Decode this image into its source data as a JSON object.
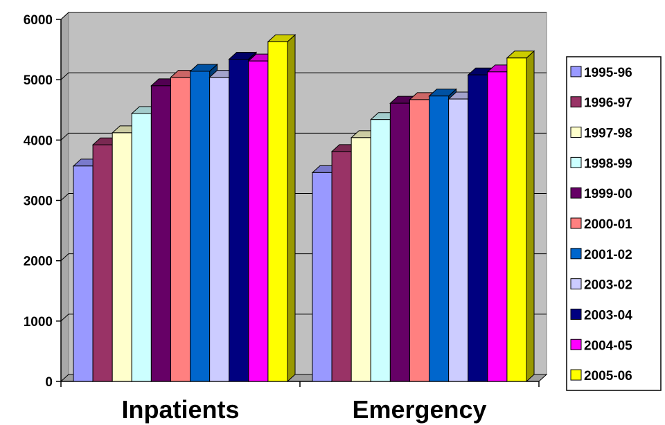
{
  "chart_data": {
    "type": "bar",
    "three_d": true,
    "categories": [
      "Inpatients",
      "Emergency"
    ],
    "series": [
      {
        "name": "1995-96",
        "color": "#9999ff",
        "values": [
          3570,
          3460
        ]
      },
      {
        "name": "1996-97",
        "color": "#993366",
        "values": [
          3920,
          3810
        ]
      },
      {
        "name": "1997-98",
        "color": "#ffffcc",
        "values": [
          4120,
          4040
        ]
      },
      {
        "name": "1998-99",
        "color": "#ccffff",
        "values": [
          4440,
          4340
        ]
      },
      {
        "name": "1999-00",
        "color": "#660066",
        "values": [
          4900,
          4610
        ]
      },
      {
        "name": "2000-01",
        "color": "#ff8080",
        "values": [
          5040,
          4670
        ]
      },
      {
        "name": "2001-02",
        "color": "#0066cc",
        "values": [
          5140,
          4730
        ]
      },
      {
        "name": "2003-02",
        "color": "#ccccff",
        "values": [
          5040,
          4680
        ]
      },
      {
        "name": "2003-04",
        "color": "#000080",
        "values": [
          5340,
          5080
        ]
      },
      {
        "name": "2004-05",
        "color": "#ff00ff",
        "values": [
          5310,
          5130
        ]
      },
      {
        "name": "2005-06",
        "color": "#ffff00",
        "values": [
          5630,
          5360
        ]
      }
    ],
    "y_ticks": [
      "0",
      "1000",
      "2000",
      "3000",
      "4000",
      "5000",
      "6000"
    ],
    "ylim": [
      0,
      6000
    ],
    "grid": true,
    "legend_position": "right",
    "plot_background": "#c0c0c0"
  }
}
